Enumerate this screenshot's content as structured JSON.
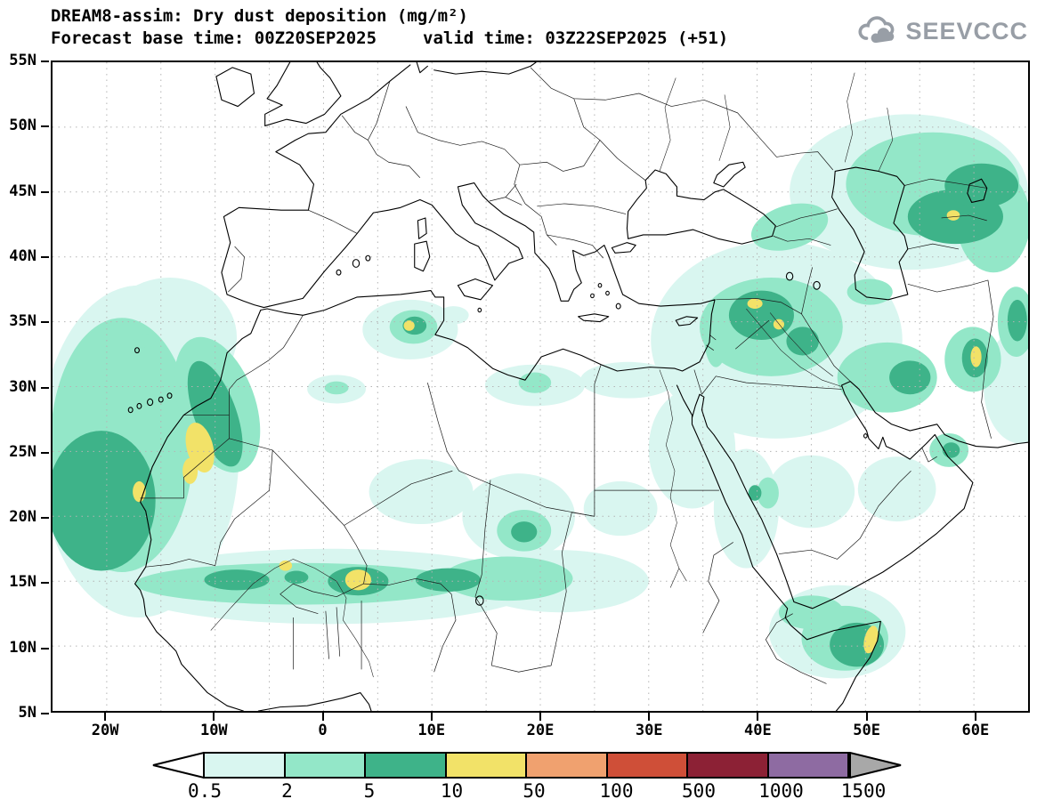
{
  "header": {
    "title": "DREAM8-assim: Dry dust deposition (mg/m²)",
    "base_time": "Forecast base time: 00Z20SEP2025",
    "valid_time": "valid time: 03Z22SEP2025 (+51)",
    "logo_text": "SEEVCCC",
    "logo_color": "#989ea6"
  },
  "map": {
    "lat_labels": [
      "55N",
      "50N",
      "45N",
      "40N",
      "35N",
      "30N",
      "25N",
      "20N",
      "15N",
      "10N",
      "5N"
    ],
    "lon_labels": [
      "20W",
      "10W",
      "0",
      "10E",
      "20E",
      "30E",
      "40E",
      "50E",
      "60E"
    ]
  },
  "colorbar": {
    "tick_labels": [
      "0.5",
      "2",
      "5",
      "10",
      "50",
      "100",
      "500",
      "1000",
      "1500"
    ],
    "colors": [
      "#ffffff",
      "#d9f6f0",
      "#93e7c8",
      "#3eb389",
      "#f2e268",
      "#f0a16f",
      "#cf4f38",
      "#8c2135",
      "#8e6ba2",
      "#a8a8a8"
    ]
  }
}
